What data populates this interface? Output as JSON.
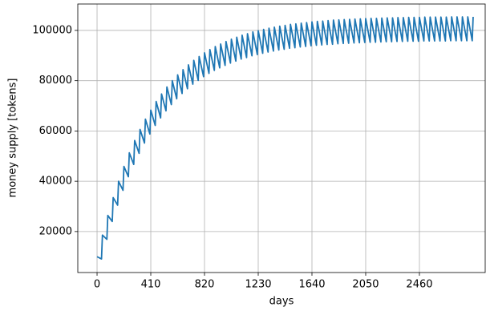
{
  "chart_data": {
    "type": "line",
    "x_label": "days",
    "y_label": "money supply [tokens]",
    "xlim": [
      -147,
      2962
    ],
    "ylim": [
      3700,
      110500
    ],
    "xticks": [
      0,
      410,
      820,
      1230,
      1640,
      2050,
      2460
    ],
    "yticks": [
      20000,
      40000,
      60000,
      80000,
      100000
    ],
    "grid": true,
    "x": [
      0,
      34,
      41,
      75,
      82,
      116,
      123,
      157,
      164,
      198,
      205,
      239,
      246,
      280,
      287,
      321,
      328,
      362,
      369,
      403,
      410,
      444,
      451,
      485,
      492,
      526,
      533,
      567,
      574,
      608,
      615,
      649,
      656,
      690,
      697,
      731,
      738,
      772,
      779,
      813,
      820,
      854,
      861,
      895,
      902,
      936,
      943,
      977,
      984,
      1018,
      1025,
      1059,
      1066,
      1100,
      1107,
      1141,
      1148,
      1182,
      1189,
      1223,
      1230,
      1264,
      1271,
      1305,
      1312,
      1346,
      1353,
      1387,
      1394,
      1428,
      1435,
      1469,
      1476,
      1510,
      1517,
      1551,
      1558,
      1592,
      1599,
      1633,
      1640,
      1674,
      1681,
      1715,
      1722,
      1756,
      1763,
      1797,
      1804,
      1838,
      1845,
      1879,
      1886,
      1920,
      1927,
      1961,
      1968,
      2002,
      2009,
      2043,
      2050,
      2084,
      2091,
      2125,
      2132,
      2166,
      2173,
      2207,
      2214,
      2248,
      2255,
      2289,
      2296,
      2330,
      2337,
      2371,
      2378,
      2412,
      2419,
      2453,
      2460,
      2494,
      2501,
      2535,
      2542,
      2576,
      2583,
      2617,
      2624,
      2658,
      2665,
      2699,
      2706,
      2740,
      2747,
      2781,
      2788,
      2822,
      2829,
      2863,
      2870
    ],
    "series": [
      {
        "color": "#1f77b4",
        "values": [
          10000,
          9100,
          18600,
          16900,
          26400,
          24000,
          33500,
          30500,
          40000,
          36400,
          45900,
          41800,
          51300,
          46700,
          56200,
          51100,
          60600,
          55200,
          64700,
          58800,
          68300,
          62200,
          71700,
          65200,
          74700,
          68000,
          77500,
          70500,
          80000,
          72800,
          82300,
          74900,
          84400,
          76800,
          86300,
          78600,
          88100,
          80100,
          89600,
          81600,
          91100,
          82900,
          92400,
          84100,
          93600,
          85100,
          94600,
          86100,
          95600,
          87000,
          96500,
          87800,
          97300,
          88600,
          98100,
          89200,
          98700,
          89900,
          99400,
          90400,
          99900,
          90900,
          100400,
          91400,
          100900,
          91800,
          101300,
          92200,
          101700,
          92500,
          102000,
          92900,
          102400,
          93100,
          102600,
          93400,
          102900,
          93600,
          103100,
          93900,
          103400,
          94100,
          103600,
          94200,
          103700,
          94400,
          103900,
          94500,
          104100,
          94700,
          104200,
          94800,
          104300,
          94900,
          104400,
          95000,
          104500,
          95100,
          104600,
          95200,
          104700,
          95300,
          104800,
          95300,
          104800,
          95400,
          104900,
          95500,
          105000,
          95500,
          105000,
          95600,
          105100,
          95600,
          105100,
          95700,
          105200,
          95700,
          105200,
          95700,
          105200,
          95800,
          105300,
          95800,
          105300,
          95800,
          105300,
          95800,
          105300,
          95800,
          105300,
          95900,
          105400,
          95900,
          105400,
          95900,
          105400,
          95900,
          105400,
          95900,
          105400
        ]
      }
    ]
  }
}
